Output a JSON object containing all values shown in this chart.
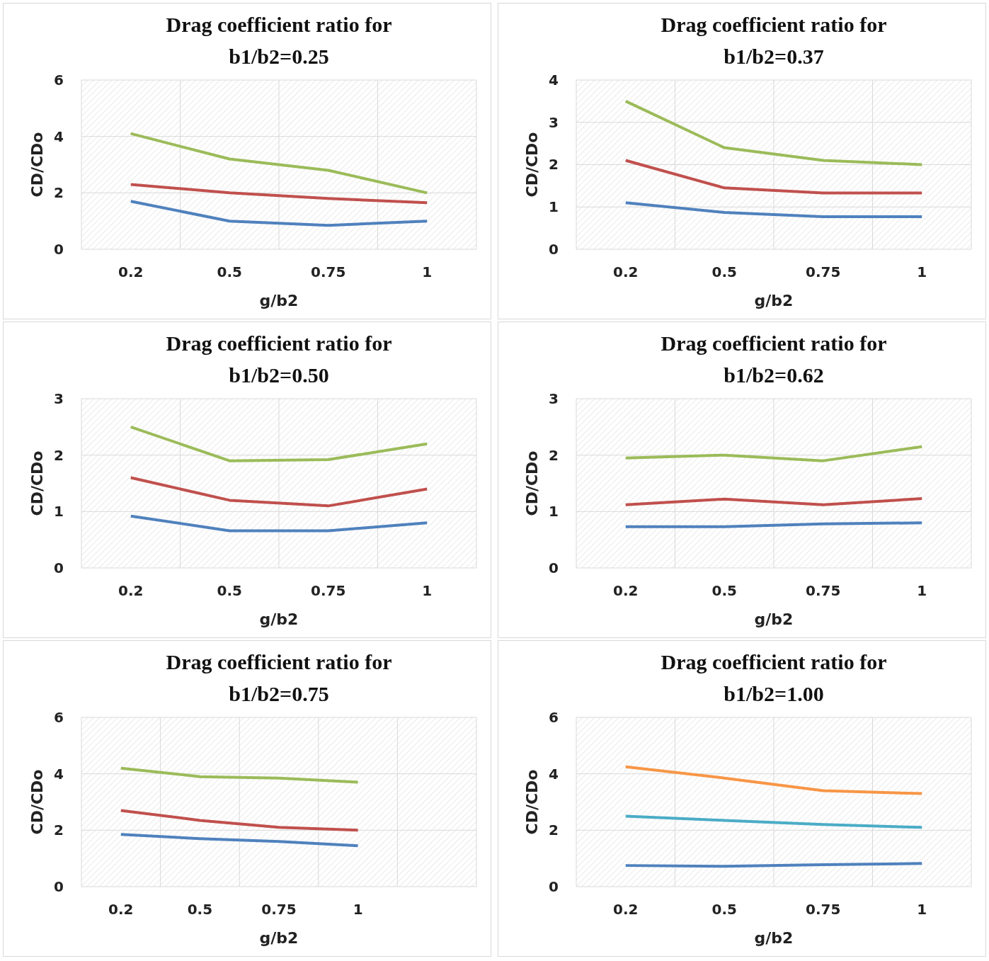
{
  "chart_data": [
    {
      "type": "line",
      "title": "Drag coefficient ratio for b1/b2=0.25",
      "xlabel": "g/b2",
      "ylabel": "CD/CDo",
      "categories": [
        "0.2",
        "0.5",
        "0.75",
        "1"
      ],
      "ylim": [
        0,
        6
      ],
      "yticks": [
        0,
        2,
        4,
        6
      ],
      "grid": true,
      "marker": "none",
      "series": [
        {
          "color": "#4f81bd",
          "values": [
            1.7,
            1.0,
            0.85,
            1.0
          ]
        },
        {
          "color": "#c0504d",
          "values": [
            2.3,
            2.0,
            1.8,
            1.65
          ]
        },
        {
          "color": "#9bbb59",
          "values": [
            4.1,
            3.2,
            2.8,
            2.0
          ]
        }
      ]
    },
    {
      "type": "line",
      "title": "Drag coefficient ratio for b1/b2=0.37",
      "xlabel": "g/b2",
      "ylabel": "CD/CDo",
      "categories": [
        "0.2",
        "0.5",
        "0.75",
        "1"
      ],
      "ylim": [
        0,
        4
      ],
      "yticks": [
        0,
        1,
        2,
        3,
        4
      ],
      "grid": true,
      "marker": "none",
      "series": [
        {
          "color": "#4f81bd",
          "values": [
            1.1,
            0.87,
            0.77,
            0.77
          ]
        },
        {
          "color": "#c0504d",
          "values": [
            2.1,
            1.45,
            1.33,
            1.33
          ]
        },
        {
          "color": "#9bbb59",
          "values": [
            3.5,
            2.4,
            2.1,
            2.0
          ]
        }
      ]
    },
    {
      "type": "line",
      "title": "Drag coefficient ratio for b1/b2=0.50",
      "xlabel": "g/b2",
      "ylabel": "CD/CDo",
      "categories": [
        "0.2",
        "0.5",
        "0.75",
        "1"
      ],
      "ylim": [
        0,
        3
      ],
      "yticks": [
        0,
        1,
        2,
        3
      ],
      "grid": true,
      "marker": "none",
      "series": [
        {
          "color": "#4f81bd",
          "values": [
            0.92,
            0.66,
            0.66,
            0.8
          ]
        },
        {
          "color": "#c0504d",
          "values": [
            1.6,
            1.2,
            1.1,
            1.4
          ]
        },
        {
          "color": "#9bbb59",
          "values": [
            2.5,
            1.9,
            1.92,
            2.2
          ]
        }
      ]
    },
    {
      "type": "line",
      "title": "Drag coefficient ratio for b1/b2=0.62",
      "xlabel": "g/b2",
      "ylabel": "CD/CDo",
      "categories": [
        "0.2",
        "0.5",
        "0.75",
        "1"
      ],
      "ylim": [
        0,
        3
      ],
      "yticks": [
        0,
        1,
        2,
        3
      ],
      "grid": true,
      "marker": "none",
      "series": [
        {
          "color": "#4f81bd",
          "values": [
            0.73,
            0.73,
            0.78,
            0.8
          ]
        },
        {
          "color": "#c0504d",
          "values": [
            1.12,
            1.22,
            1.12,
            1.23
          ]
        },
        {
          "color": "#9bbb59",
          "values": [
            1.95,
            2.0,
            1.9,
            2.15
          ]
        }
      ]
    },
    {
      "type": "line",
      "title": "Drag coefficient ratio for b1/b2=0.75",
      "xlabel": "g/b2",
      "ylabel": "CD/CDo",
      "categories": [
        "0.2",
        "0.5",
        "0.75",
        "1",
        null
      ],
      "ylim": [
        0,
        6
      ],
      "yticks": [
        0,
        2,
        4,
        6
      ],
      "grid": true,
      "marker": "none",
      "series": [
        {
          "color": "#4f81bd",
          "values": [
            1.85,
            1.7,
            1.6,
            1.45,
            null
          ]
        },
        {
          "color": "#c0504d",
          "values": [
            2.7,
            2.35,
            2.1,
            2.0,
            null
          ]
        },
        {
          "color": "#9bbb59",
          "values": [
            4.2,
            3.9,
            3.85,
            3.7,
            null
          ]
        }
      ]
    },
    {
      "type": "line",
      "title": "Drag coefficient ratio for b1/b2=1.00",
      "xlabel": "g/b2",
      "ylabel": "CD/CDo",
      "categories": [
        "0.2",
        "0.5",
        "0.75",
        "1"
      ],
      "ylim": [
        0,
        6
      ],
      "yticks": [
        0,
        2,
        4,
        6
      ],
      "grid": true,
      "marker": "none",
      "series": [
        {
          "color": "#4f81bd",
          "values": [
            0.75,
            0.72,
            0.78,
            0.82
          ]
        },
        {
          "color": "#4bacc6",
          "values": [
            2.5,
            2.35,
            2.2,
            2.1
          ]
        },
        {
          "color": "#f79646",
          "values": [
            4.25,
            3.85,
            3.4,
            3.3
          ]
        }
      ]
    }
  ]
}
